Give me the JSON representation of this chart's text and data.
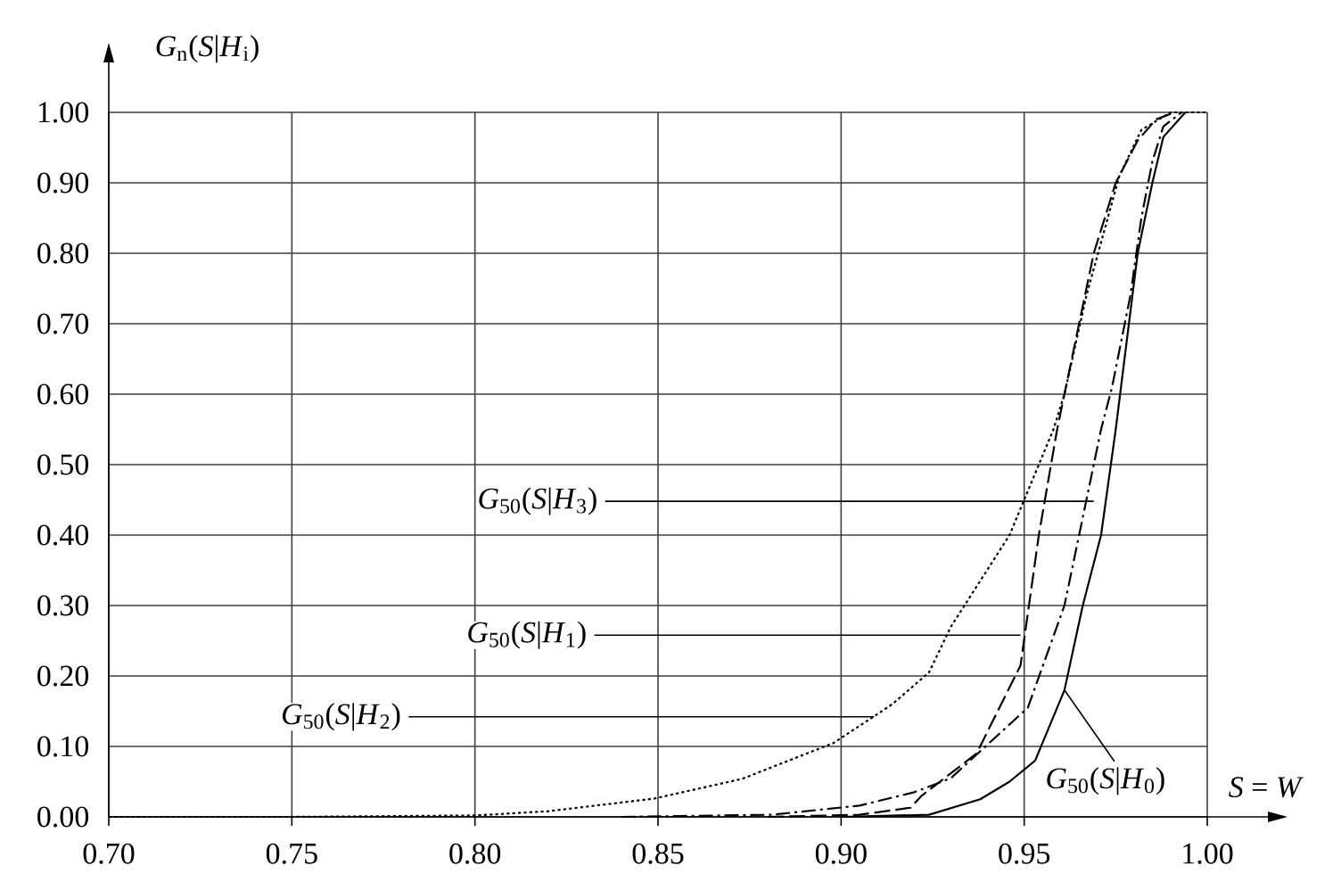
{
  "chart_data": {
    "type": "line",
    "xlabel": "*S* = *W*",
    "ylabel": "*G*$_{n}$(*S*|*H*$_{i}$)",
    "xlim": [
      0.7,
      1.0
    ],
    "ylim": [
      0.0,
      1.0
    ],
    "xticks": [
      {
        "value": 0.7,
        "label": "0.70"
      },
      {
        "value": 0.75,
        "label": "0.75"
      },
      {
        "value": 0.8,
        "label": "0.80"
      },
      {
        "value": 0.85,
        "label": "0.85"
      },
      {
        "value": 0.9,
        "label": "0.90"
      },
      {
        "value": 0.95,
        "label": "0.95"
      },
      {
        "value": 1.0,
        "label": "1.00"
      }
    ],
    "yticks": [
      {
        "value": 0.0,
        "label": "0.00"
      },
      {
        "value": 0.1,
        "label": "0.10"
      },
      {
        "value": 0.2,
        "label": "0.20"
      },
      {
        "value": 0.3,
        "label": "0.30"
      },
      {
        "value": 0.4,
        "label": "0.40"
      },
      {
        "value": 0.5,
        "label": "0.50"
      },
      {
        "value": 0.6,
        "label": "0.60"
      },
      {
        "value": 0.7,
        "label": "0.70"
      },
      {
        "value": 0.8,
        "label": "0.80"
      },
      {
        "value": 0.9,
        "label": "0.90"
      },
      {
        "value": 1.0,
        "label": "1.00"
      }
    ],
    "grid": true,
    "marker": "none",
    "series": [
      {
        "color": "#000000",
        "line_style": "solid",
        "x": [
          0.9,
          0.924,
          0.938,
          0.946,
          0.953,
          0.961,
          0.966,
          0.971,
          0.975,
          0.981,
          0.985,
          0.988,
          0.994
        ],
        "values": [
          0,
          0.003,
          0.025,
          0.05,
          0.08,
          0.18,
          0.3,
          0.4,
          0.55,
          0.8,
          0.9,
          0.965,
          1.0
        ]
      },
      {
        "color": "#000000",
        "line_style": "dashed",
        "x": [
          0.88,
          0.905,
          0.919,
          0.922,
          0.937,
          0.949,
          0.954,
          0.959,
          0.961,
          0.969,
          0.975,
          0.981,
          0.986,
          0.991
        ],
        "values": [
          0,
          0.003,
          0.013,
          0.03,
          0.09,
          0.215,
          0.4,
          0.55,
          0.6,
          0.8,
          0.9,
          0.96,
          0.99,
          1.0
        ]
      },
      {
        "color": "#000000",
        "line_style": "dashdot",
        "x": [
          0.84,
          0.881,
          0.905,
          0.92,
          0.93,
          0.951,
          0.961,
          0.967,
          0.971,
          0.974,
          0.979,
          0.982,
          0.985,
          0.988,
          0.993
        ],
        "values": [
          0,
          0.003,
          0.016,
          0.035,
          0.055,
          0.155,
          0.3,
          0.45,
          0.55,
          0.61,
          0.74,
          0.85,
          0.93,
          0.98,
          1.0
        ]
      },
      {
        "color": "#000000",
        "line_style": "dotted",
        "x": [
          0.7,
          0.75,
          0.8,
          0.82,
          0.849,
          0.873,
          0.898,
          0.914,
          0.924,
          0.93,
          0.946,
          0.958,
          0.961,
          0.967,
          0.976,
          0.982,
          0.99,
          1.0
        ],
        "values": [
          0,
          0,
          0.002,
          0.008,
          0.026,
          0.054,
          0.105,
          0.16,
          0.205,
          0.27,
          0.4,
          0.55,
          0.6,
          0.74,
          0.91,
          0.975,
          1.0,
          1.0
        ]
      }
    ],
    "annotations": [
      {
        "text": "*G*$_{50}$(*S*|*H*$_{3}$)",
        "x": 0.969,
        "y": 0.448
      },
      {
        "text": "*G*$_{50}$(*S*|*H*$_{1}$)",
        "x": 0.949,
        "y": 0.258
      },
      {
        "text": "*G*$_{50}$(*S*|*H*$_{2}$)",
        "x": 0.909,
        "y": 0.142
      },
      {
        "text": "*G*$_{50}$(*S*|*H*$_{0}$)",
        "x": 0.961,
        "y": 0.18
      }
    ]
  }
}
